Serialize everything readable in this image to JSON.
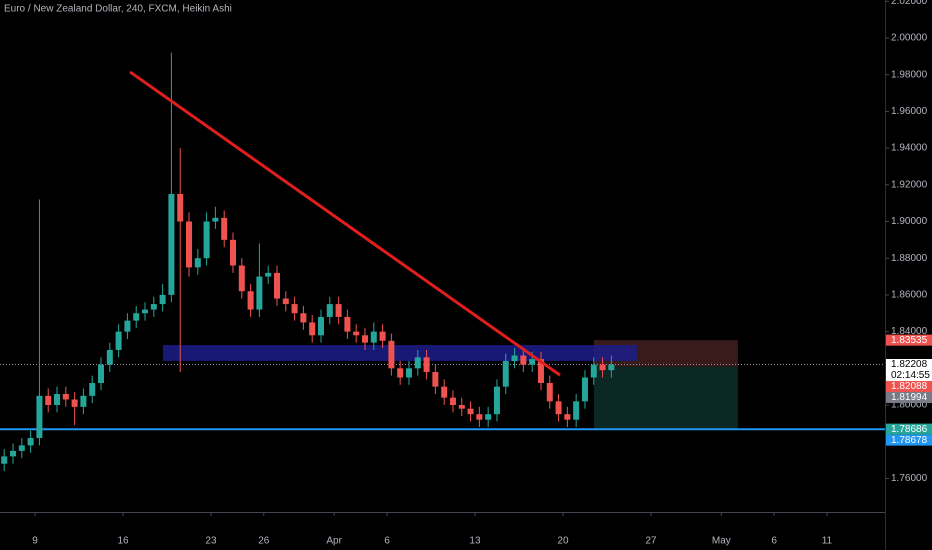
{
  "chart_data": {
    "type": "candlestick",
    "title": "Euro / New Zealand Dollar, 240, FXCM, Heikin Ashi",
    "up_color": "#26a69a",
    "down_color": "#ef5350",
    "x": [
      -1.75,
      -1.25,
      -0.75,
      -0.25,
      0.25,
      0.75,
      1.25,
      1.75,
      2.25,
      2.75,
      3.25,
      3.75,
      4.25,
      4.75,
      5.25,
      5.75,
      6.25,
      6.75,
      7.25,
      7.75,
      8.25,
      8.75,
      9.25,
      9.75,
      10.25,
      10.75,
      11.25,
      11.75,
      12.25,
      12.75,
      13.25,
      13.75,
      14.25,
      14.75,
      15.25,
      15.75,
      16.25,
      16.75,
      17.25,
      17.75,
      18.25,
      18.75,
      19.25,
      19.75,
      20.25,
      20.75,
      21.25,
      21.75,
      22.25,
      22.75,
      23.25,
      23.75,
      24.25,
      24.75,
      25.25,
      25.75,
      26.25,
      26.75,
      27.25,
      27.75,
      28.25,
      28.75,
      29.25,
      29.75,
      30.25,
      30.75,
      31.25,
      31.75,
      32.25,
      32.75
    ],
    "open": [
      1.768,
      1.772,
      1.775,
      1.778,
      1.782,
      1.805,
      1.8,
      1.806,
      1.803,
      1.799,
      1.805,
      1.812,
      1.822,
      1.83,
      1.84,
      1.846,
      1.85,
      1.852,
      1.855,
      1.86,
      1.915,
      1.9,
      1.875,
      1.88,
      1.9,
      1.902,
      1.89,
      1.876,
      1.862,
      1.852,
      1.87,
      1.872,
      1.858,
      1.855,
      1.85,
      1.845,
      1.838,
      1.848,
      1.855,
      1.848,
      1.84,
      1.838,
      1.834,
      1.84,
      1.835,
      1.82,
      1.815,
      1.82,
      1.826,
      1.818,
      1.81,
      1.804,
      1.8,
      1.798,
      1.795,
      1.792,
      1.795,
      1.81,
      1.824,
      1.827,
      1.822,
      1.825,
      1.812,
      1.802,
      1.795,
      1.792,
      1.802,
      1.815,
      1.822,
      1.819
    ],
    "high": [
      1.776,
      1.779,
      1.782,
      1.786,
      1.912,
      1.809,
      1.81,
      1.81,
      1.807,
      1.809,
      1.816,
      1.826,
      1.834,
      1.844,
      1.85,
      1.854,
      1.856,
      1.859,
      1.866,
      1.992,
      1.94,
      1.905,
      1.885,
      1.905,
      1.908,
      1.906,
      1.894,
      1.88,
      1.866,
      1.888,
      1.876,
      1.876,
      1.862,
      1.859,
      1.854,
      1.849,
      1.852,
      1.859,
      1.859,
      1.852,
      1.844,
      1.842,
      1.845,
      1.844,
      1.839,
      1.824,
      1.824,
      1.83,
      1.83,
      1.822,
      1.814,
      1.808,
      1.804,
      1.802,
      1.799,
      1.799,
      1.814,
      1.828,
      1.831,
      1.831,
      1.829,
      1.829,
      1.816,
      1.806,
      1.799,
      1.806,
      1.819,
      1.826,
      1.826,
      1.827
    ],
    "low": [
      1.764,
      1.768,
      1.771,
      1.774,
      1.778,
      1.796,
      1.796,
      1.799,
      1.789,
      1.795,
      1.801,
      1.808,
      1.818,
      1.826,
      1.836,
      1.842,
      1.846,
      1.848,
      1.851,
      1.856,
      1.818,
      1.87,
      1.871,
      1.876,
      1.896,
      1.886,
      1.872,
      1.858,
      1.848,
      1.848,
      1.866,
      1.854,
      1.851,
      1.846,
      1.841,
      1.834,
      1.834,
      1.844,
      1.844,
      1.836,
      1.834,
      1.83,
      1.83,
      1.831,
      1.816,
      1.811,
      1.811,
      1.816,
      1.814,
      1.806,
      1.8,
      1.796,
      1.794,
      1.791,
      1.788,
      1.788,
      1.791,
      1.806,
      1.82,
      1.818,
      1.818,
      1.808,
      1.798,
      1.791,
      1.788,
      1.788,
      1.798,
      1.811,
      1.815,
      1.815
    ],
    "close": [
      1.772,
      1.775,
      1.778,
      1.782,
      1.805,
      1.8,
      1.806,
      1.803,
      1.799,
      1.805,
      1.812,
      1.822,
      1.83,
      1.84,
      1.846,
      1.85,
      1.852,
      1.855,
      1.86,
      1.915,
      1.9,
      1.875,
      1.88,
      1.9,
      1.902,
      1.89,
      1.876,
      1.862,
      1.852,
      1.87,
      1.872,
      1.858,
      1.855,
      1.85,
      1.845,
      1.838,
      1.848,
      1.855,
      1.848,
      1.84,
      1.838,
      1.834,
      1.84,
      1.835,
      1.82,
      1.815,
      1.82,
      1.826,
      1.818,
      1.81,
      1.804,
      1.8,
      1.798,
      1.795,
      1.792,
      1.795,
      1.81,
      1.824,
      1.827,
      1.822,
      1.825,
      1.812,
      1.802,
      1.795,
      1.792,
      1.802,
      1.815,
      1.822,
      1.819,
      1.822
    ],
    "xlim": [
      -1.99,
      48.3
    ],
    "ylim": [
      1.7417,
      2.0207
    ],
    "xticks": [
      {
        "value": 0,
        "label": "9"
      },
      {
        "value": 5,
        "label": "16"
      },
      {
        "value": 10,
        "label": "23"
      },
      {
        "value": 13,
        "label": "26"
      },
      {
        "value": 17,
        "label": "Apr"
      },
      {
        "value": 20,
        "label": "6"
      },
      {
        "value": 25,
        "label": "13"
      },
      {
        "value": 30,
        "label": "20"
      },
      {
        "value": 35,
        "label": "27"
      },
      {
        "value": 39,
        "label": "May"
      },
      {
        "value": 42,
        "label": "6"
      },
      {
        "value": 45,
        "label": "11"
      }
    ],
    "yticks": [
      {
        "value": 1.76,
        "label": "1.76000"
      },
      {
        "value": 1.8,
        "label": "1.80000"
      },
      {
        "value": 1.84,
        "label": "1.84000"
      },
      {
        "value": 1.86,
        "label": "1.86000"
      },
      {
        "value": 1.88,
        "label": "1.88000"
      },
      {
        "value": 1.9,
        "label": "1.90000"
      },
      {
        "value": 1.92,
        "label": "1.92000"
      },
      {
        "value": 1.94,
        "label": "1.94000"
      },
      {
        "value": 1.96,
        "label": "1.96000"
      },
      {
        "value": 1.98,
        "label": "1.98000"
      },
      {
        "value": 2.0,
        "label": "2.00000"
      },
      {
        "value": 2.02,
        "label": "2.02000"
      }
    ],
    "trendline": {
      "x": [
        5.4,
        29.83
      ],
      "y": [
        1.9815,
        1.8163
      ],
      "color": "#e01e1e"
    },
    "zone": {
      "x": [
        7.27,
        34.2
      ],
      "y": [
        1.8327,
        1.824
      ],
      "color": "#1c1c8a"
    },
    "position": {
      "x": [
        31.76,
        39.94
      ],
      "stop": 1.83535,
      "entry": 1.82088,
      "target": 1.78686,
      "stop_color": "#3a1b1c",
      "target_color": "#0b2824"
    },
    "hline": {
      "value": 1.78678,
      "color": "#2196f3"
    },
    "last_price": 1.82208,
    "countdown": "02:14:55",
    "price_markers": [
      {
        "value": 1.83535,
        "color": "#ef5350"
      },
      {
        "value": 1.82208,
        "color": "#ffffff"
      },
      {
        "value": 1.82088,
        "color": "#ef5350"
      },
      {
        "value": 1.81994,
        "color": "#787b86"
      },
      {
        "value": 1.78686,
        "color": "#26a69a"
      },
      {
        "value": 1.78678,
        "color": "#2196f3"
      }
    ]
  }
}
